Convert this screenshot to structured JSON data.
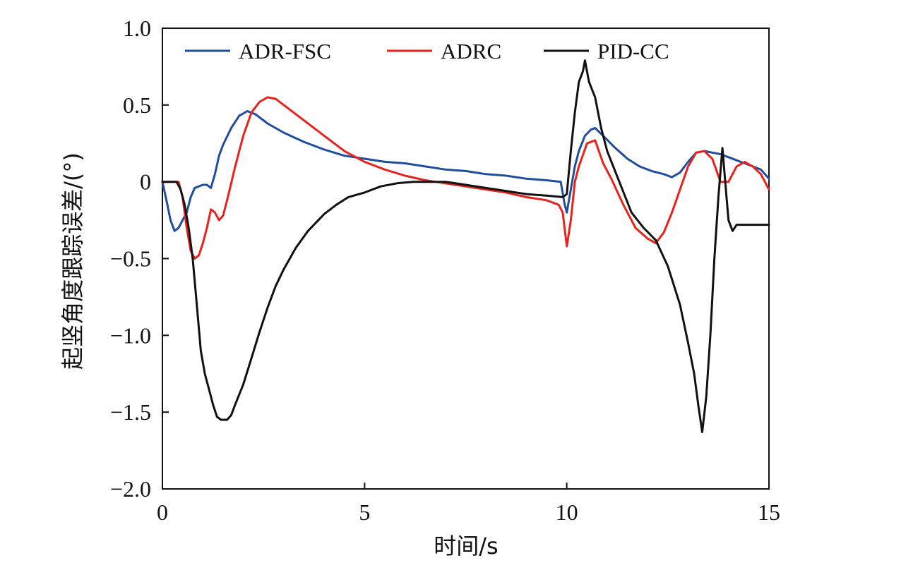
{
  "chart_data": {
    "type": "line",
    "xlabel": "时间/s",
    "ylabel": "起竖角度跟踪误差/(°)",
    "xlim": [
      0,
      15
    ],
    "ylim": [
      -2.0,
      1.0
    ],
    "xticks": [
      "0",
      "5",
      "10",
      "15"
    ],
    "yticks": [
      "1.0",
      "0.5",
      "0",
      "−0.5",
      "−1.0",
      "−1.5",
      "−2.0"
    ],
    "xtick_values": [
      0,
      5,
      10,
      15
    ],
    "ytick_values": [
      1.0,
      0.5,
      0,
      -0.5,
      -1.0,
      -1.5,
      -2.0
    ],
    "grid": false,
    "legend_position": "top",
    "series": [
      {
        "name": "ADR-FSC",
        "color": "#1f4e9e",
        "x": [
          0,
          0.1,
          0.2,
          0.3,
          0.4,
          0.5,
          0.6,
          0.7,
          0.8,
          0.9,
          1.0,
          1.1,
          1.2,
          1.3,
          1.4,
          1.5,
          1.7,
          1.9,
          2.1,
          2.3,
          2.6,
          3.0,
          3.5,
          4.0,
          4.5,
          5.0,
          5.5,
          6.0,
          6.5,
          7.0,
          7.5,
          8.0,
          8.5,
          9.0,
          9.5,
          9.85,
          9.95,
          10.0,
          10.1,
          10.2,
          10.3,
          10.45,
          10.6,
          10.7,
          10.9,
          11.2,
          11.5,
          11.8,
          12.1,
          12.4,
          12.6,
          12.8,
          13.0,
          13.2,
          13.4,
          13.6,
          13.8,
          14.0,
          14.2,
          14.4,
          14.6,
          14.8,
          15.0
        ],
        "y": [
          0,
          -0.12,
          -0.25,
          -0.32,
          -0.3,
          -0.25,
          -0.2,
          -0.1,
          -0.04,
          -0.03,
          -0.02,
          -0.02,
          -0.04,
          0.05,
          0.17,
          0.24,
          0.35,
          0.43,
          0.46,
          0.44,
          0.38,
          0.32,
          0.26,
          0.21,
          0.17,
          0.15,
          0.13,
          0.12,
          0.1,
          0.08,
          0.07,
          0.05,
          0.04,
          0.02,
          0.01,
          0.0,
          -0.15,
          -0.2,
          -0.05,
          0.1,
          0.2,
          0.3,
          0.34,
          0.35,
          0.3,
          0.22,
          0.15,
          0.1,
          0.07,
          0.05,
          0.03,
          0.06,
          0.13,
          0.19,
          0.2,
          0.19,
          0.18,
          0.16,
          0.14,
          0.12,
          0.1,
          0.08,
          0.02
        ]
      },
      {
        "name": "ADRC",
        "color": "#e8221c",
        "x": [
          0,
          0.1,
          0.2,
          0.3,
          0.4,
          0.5,
          0.6,
          0.7,
          0.8,
          0.9,
          1.0,
          1.1,
          1.2,
          1.3,
          1.4,
          1.5,
          1.6,
          1.8,
          2.0,
          2.2,
          2.4,
          2.6,
          2.8,
          3.0,
          3.5,
          4.0,
          4.5,
          5.0,
          5.5,
          6.0,
          6.5,
          7.0,
          7.5,
          8.0,
          8.5,
          9.0,
          9.5,
          9.8,
          9.9,
          10.0,
          10.1,
          10.2,
          10.3,
          10.5,
          10.7,
          10.9,
          11.1,
          11.4,
          11.7,
          12.0,
          12.2,
          12.4,
          12.6,
          12.8,
          13.0,
          13.2,
          13.4,
          13.6,
          13.8,
          14.0,
          14.2,
          14.4,
          14.6,
          14.8,
          15.0
        ],
        "y": [
          0,
          0.0,
          0.0,
          0.0,
          0.0,
          -0.1,
          -0.3,
          -0.45,
          -0.5,
          -0.48,
          -0.4,
          -0.3,
          -0.18,
          -0.2,
          -0.25,
          -0.22,
          -0.12,
          0.1,
          0.3,
          0.45,
          0.52,
          0.55,
          0.54,
          0.5,
          0.4,
          0.3,
          0.2,
          0.13,
          0.08,
          0.04,
          0.01,
          -0.01,
          -0.03,
          -0.05,
          -0.07,
          -0.1,
          -0.12,
          -0.15,
          -0.2,
          -0.42,
          -0.25,
          0.0,
          0.1,
          0.25,
          0.27,
          0.12,
          0.02,
          -0.15,
          -0.3,
          -0.37,
          -0.4,
          -0.33,
          -0.2,
          -0.05,
          0.1,
          0.19,
          0.2,
          0.15,
          0.0,
          0.0,
          0.1,
          0.13,
          0.1,
          0.05,
          -0.05
        ]
      },
      {
        "name": "PID-CC",
        "color": "#111111",
        "x": [
          0,
          0.2,
          0.35,
          0.45,
          0.55,
          0.65,
          0.75,
          0.85,
          0.95,
          1.05,
          1.15,
          1.25,
          1.35,
          1.45,
          1.55,
          1.6,
          1.7,
          1.8,
          2.0,
          2.2,
          2.4,
          2.6,
          2.8,
          3.0,
          3.3,
          3.6,
          4.0,
          4.3,
          4.6,
          5.0,
          5.4,
          5.8,
          6.2,
          6.6,
          7.0,
          7.5,
          8.0,
          8.5,
          9.0,
          9.5,
          9.9,
          10.0,
          10.1,
          10.2,
          10.3,
          10.4,
          10.45,
          10.55,
          10.7,
          10.85,
          11.0,
          11.3,
          11.6,
          11.9,
          12.2,
          12.5,
          12.8,
          13.0,
          13.15,
          13.25,
          13.35,
          13.45,
          13.55,
          13.65,
          13.75,
          13.85,
          13.95,
          14.0,
          14.1,
          14.2,
          14.4,
          14.7,
          15.0
        ],
        "y": [
          0,
          0.0,
          0.0,
          -0.05,
          -0.15,
          -0.3,
          -0.5,
          -0.8,
          -1.1,
          -1.25,
          -1.35,
          -1.45,
          -1.53,
          -1.55,
          -1.55,
          -1.55,
          -1.52,
          -1.45,
          -1.32,
          -1.15,
          -0.98,
          -0.82,
          -0.68,
          -0.57,
          -0.43,
          -0.32,
          -0.21,
          -0.15,
          -0.1,
          -0.07,
          -0.03,
          -0.01,
          0.0,
          0.0,
          0.0,
          -0.02,
          -0.04,
          -0.06,
          -0.08,
          -0.09,
          -0.1,
          -0.08,
          0.2,
          0.45,
          0.65,
          0.72,
          0.79,
          0.65,
          0.55,
          0.35,
          0.2,
          0.0,
          -0.2,
          -0.3,
          -0.38,
          -0.55,
          -0.8,
          -1.05,
          -1.25,
          -1.45,
          -1.63,
          -1.4,
          -1.0,
          -0.5,
          -0.1,
          0.22,
          -0.1,
          -0.25,
          -0.32,
          -0.28,
          -0.28,
          -0.28,
          -0.28
        ]
      }
    ]
  }
}
